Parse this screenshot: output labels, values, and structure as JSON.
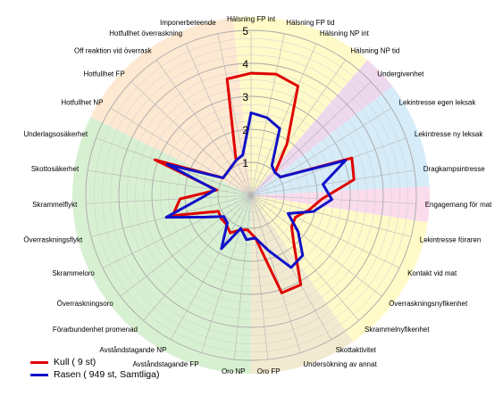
{
  "chart_data": {
    "type": "radar",
    "r_ticks": [
      1,
      2,
      3,
      4,
      5
    ],
    "rlim": [
      0,
      5
    ],
    "axes": [
      "Hälsning FP int",
      "Hälsning FP tid",
      "Hälsning NP int",
      "Hälsning NP tid",
      "Undergivenhet",
      "Lekintresse egen leksak",
      "Lekintresse ny leksak",
      "Dragkampsintresse",
      "Engagemang för mat",
      "Lekintresse föraren",
      "Kontakt vid mat",
      "Överraskningsnyfikenhet",
      "Skrammelnyfikenhet",
      "Skottaktivitet",
      "Undersökning av annat",
      "Oro FP",
      "Oro NP",
      "Avståndstagande FP",
      "Avståndstagande NP",
      "Förarbundenhet promenad",
      "Överraskningsoro",
      "Skrammeloro",
      "Överraskningsflykt",
      "Skrammelflykt",
      "Skottosäkerhet",
      "Underlagsosäkerhet",
      "Hotfullhet NP",
      "Hotfullhet FP",
      "Off reaktion vid överrask",
      "Hotfullhet överraskning",
      "Imponerbeteende"
    ],
    "sectors": [
      {
        "from": 0,
        "to": 3,
        "color": "#fffac8"
      },
      {
        "from": 4,
        "to": 4,
        "color": "#eed8ee"
      },
      {
        "from": 5,
        "to": 7,
        "color": "#d6ecf8"
      },
      {
        "from": 8,
        "to": 8,
        "color": "#fadcec"
      },
      {
        "from": 9,
        "to": 12,
        "color": "#fffac8"
      },
      {
        "from": 13,
        "to": 15,
        "color": "#f2ead0"
      },
      {
        "from": 16,
        "to": 25,
        "color": "#d8f0d2"
      },
      {
        "from": 26,
        "to": 30,
        "color": "#fde8d2"
      }
    ],
    "series": [
      {
        "name": "Kull ( 9 st)",
        "color": "#e00000",
        "values": [
          3.7,
          3.75,
          3.6,
          1.9,
          1.0,
          1.05,
          3.25,
          3.15,
          2.15,
          1.8,
          1.5,
          1.55,
          2.0,
          3.1,
          3.1,
          1.3,
          1.05,
          1.1,
          1.3,
          1.15,
          1.15,
          1.1,
          2.45,
          2.15,
          1.05,
          3.1,
          1.0,
          1.0,
          1.05,
          1.15,
          3.6
        ]
      },
      {
        "name": "Rasen ( 949 st, Samtliga)",
        "color": "#1010c8",
        "values": [
          2.5,
          2.4,
          2.2,
          1.1,
          1.0,
          1.05,
          3.05,
          2.2,
          2.45,
          1.95,
          1.25,
          1.8,
          2.4,
          2.5,
          1.75,
          1.3,
          1.35,
          1.05,
          1.85,
          1.1,
          1.05,
          1.5,
          2.65,
          1.5,
          1.1,
          2.7,
          1.0,
          1.0,
          1.05,
          1.15,
          1.25
        ]
      }
    ]
  }
}
